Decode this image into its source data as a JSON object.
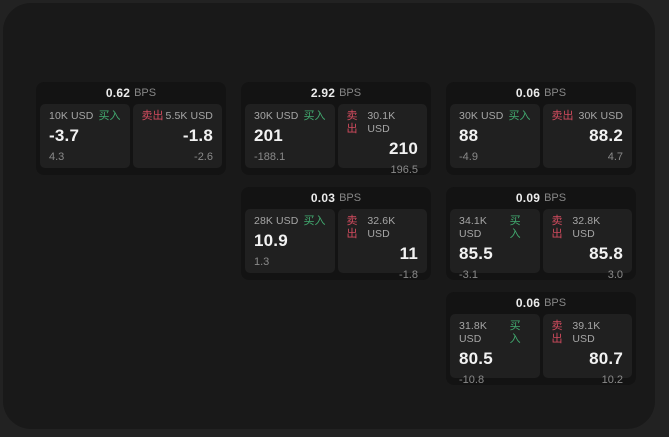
{
  "colors": {
    "backdrop": "#222222",
    "window_bg": "#191919",
    "card_bg": "#131313",
    "pane_bg": "#202020",
    "buy_green": "#42ab70",
    "sell_red": "#d24b5e",
    "value_white": "#f2f2f2",
    "muted_gray": "#8a8a8a"
  },
  "cards": [
    {
      "bps_value": "0.62",
      "bps_unit": "BPS",
      "buy": {
        "amount": "10K USD",
        "side_label": "买入",
        "value": "-3.7",
        "sub_value": "4.3"
      },
      "sell": {
        "side_label": "卖出",
        "amount": "5.5K USD",
        "value": "-1.8",
        "sub_value": "-2.6"
      }
    },
    {
      "bps_value": "2.92",
      "bps_unit": "BPS",
      "buy": {
        "amount": "30K USD",
        "side_label": "买入",
        "value": "201",
        "sub_value": "-188.1"
      },
      "sell": {
        "side_label": "卖出",
        "amount": "30.1K USD",
        "value": "210",
        "sub_value": "196.5"
      }
    },
    {
      "bps_value": "0.06",
      "bps_unit": "BPS",
      "buy": {
        "amount": "30K USD",
        "side_label": "买入",
        "value": "88",
        "sub_value": "-4.9"
      },
      "sell": {
        "side_label": "卖出",
        "amount": "30K USD",
        "value": "88.2",
        "sub_value": "4.7"
      }
    },
    {
      "bps_value": "0.03",
      "bps_unit": "BPS",
      "buy": {
        "amount": "28K USD",
        "side_label": "买入",
        "value": "10.9",
        "sub_value": "1.3"
      },
      "sell": {
        "side_label": "卖出",
        "amount": "32.6K USD",
        "value": "11",
        "sub_value": "-1.8"
      }
    },
    {
      "bps_value": "0.09",
      "bps_unit": "BPS",
      "buy": {
        "amount": "34.1K USD",
        "side_label": "买入",
        "value": "85.5",
        "sub_value": "-3.1"
      },
      "sell": {
        "side_label": "卖出",
        "amount": "32.8K USD",
        "value": "85.8",
        "sub_value": "3.0"
      }
    },
    {
      "bps_value": "0.06",
      "bps_unit": "BPS",
      "buy": {
        "amount": "31.8K USD",
        "side_label": "买入",
        "value": "80.5",
        "sub_value": "-10.8"
      },
      "sell": {
        "side_label": "卖出",
        "amount": "39.1K USD",
        "value": "80.7",
        "sub_value": "10.2"
      }
    }
  ]
}
